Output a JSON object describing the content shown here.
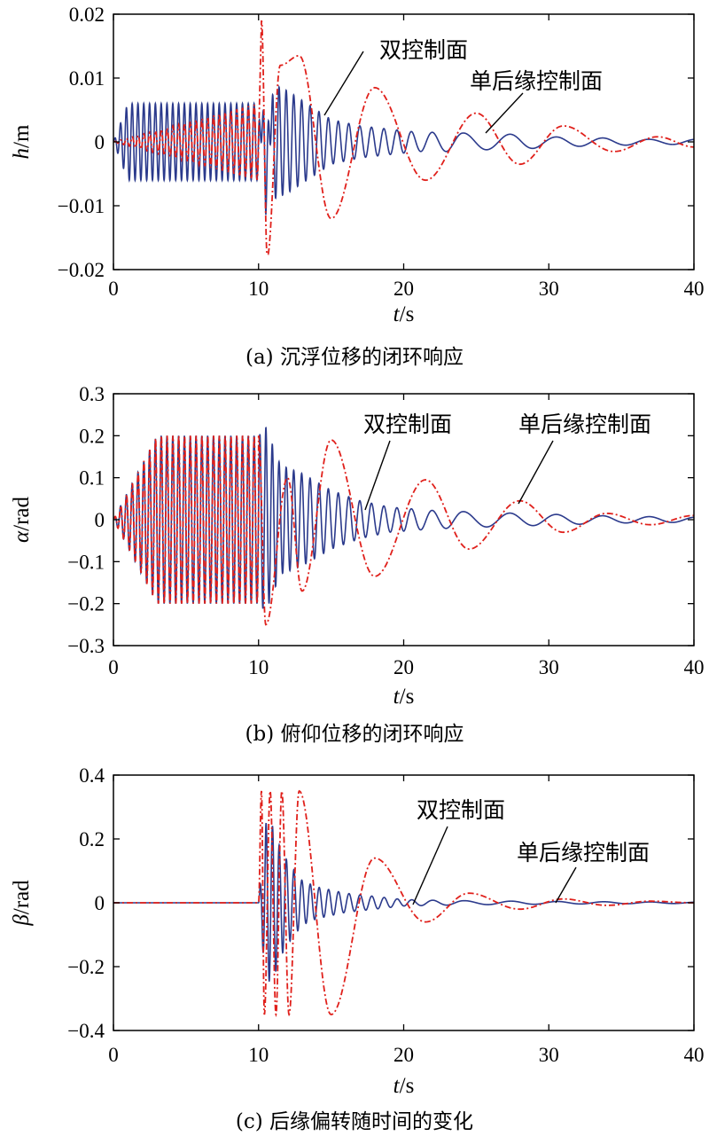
{
  "colors": {
    "dual": "#2b3a8c",
    "single": "#e0201b",
    "axis": "#000000"
  },
  "chart_data": [
    {
      "type": "line",
      "caption": "(a) 沉浮位移的闭环响应",
      "ylabel_var": "h",
      "ylabel_unit": "/m",
      "xlabel_var": "t",
      "xlabel_unit": "/s",
      "xlim": [
        0,
        40
      ],
      "ylim": [
        -0.02,
        0.02
      ],
      "xticks": [
        0,
        10,
        20,
        30,
        40
      ],
      "yticks": [
        -0.02,
        -0.01,
        0,
        0.01,
        0.02
      ],
      "ytick_labels": [
        "−0.02",
        "−0.01",
        "0",
        "0.01",
        "0.02"
      ],
      "grid": false,
      "series": [
        {
          "name": "双控制面",
          "style": "solid",
          "points": [
            [
              0,
              0
            ],
            [
              1,
              0.006
            ],
            [
              5,
              0.006
            ],
            [
              10,
              0.006
            ],
            [
              10.5,
              -0.0115
            ],
            [
              11,
              0.009
            ],
            [
              12,
              0.008
            ],
            [
              13,
              0.0065
            ],
            [
              14,
              0.005
            ],
            [
              15,
              0.0035
            ],
            [
              17,
              0.0025
            ],
            [
              19,
              0.002
            ],
            [
              21,
              0.0015
            ],
            [
              23,
              0.0015
            ],
            [
              26,
              0.0012
            ],
            [
              28,
              0.0012
            ],
            [
              30,
              0.0008
            ],
            [
              34,
              0.0006
            ],
            [
              37,
              0.0004
            ],
            [
              40,
              0.0004
            ]
          ],
          "period_before": 0.4,
          "period_after": 0.95,
          "late_period": 3.6
        },
        {
          "name": "单后缘控制面",
          "style": "dashdot",
          "points": [
            [
              0,
              0
            ],
            [
              10,
              0.006
            ],
            [
              10.2,
              0.019
            ],
            [
              10.6,
              -0.018
            ],
            [
              11.5,
              0.012
            ],
            [
              12.8,
              0.0135
            ],
            [
              15,
              -0.012
            ],
            [
              18,
              0.0085
            ],
            [
              21.5,
              -0.006
            ],
            [
              25,
              0.0045
            ],
            [
              28,
              -0.0035
            ],
            [
              31,
              0.0025
            ],
            [
              34.5,
              -0.0015
            ],
            [
              37.5,
              0.0008
            ],
            [
              40,
              -0.0008
            ]
          ],
          "period_before": 0.4
        }
      ],
      "annotations": [
        {
          "text": "双控制面",
          "series": "双控制面"
        },
        {
          "text": "单后缘控制面",
          "series": "单后缘控制面"
        }
      ]
    },
    {
      "type": "line",
      "caption": "(b) 俯仰位移的闭环响应",
      "ylabel_var": "α",
      "ylabel_unit": "/rad",
      "xlabel_var": "t",
      "xlabel_unit": "/s",
      "xlim": [
        0,
        40
      ],
      "ylim": [
        -0.3,
        0.3
      ],
      "xticks": [
        0,
        10,
        20,
        30,
        40
      ],
      "yticks": [
        -0.3,
        -0.2,
        -0.1,
        0,
        0.1,
        0.2,
        0.3
      ],
      "ytick_labels": [
        "−0.3",
        "−0.2",
        "−0.1",
        "0",
        "0.1",
        "0.2",
        "0.3"
      ],
      "grid": false,
      "series": [
        {
          "name": "双控制面",
          "style": "solid",
          "points": [
            [
              0,
              0
            ],
            [
              3,
              0.2
            ],
            [
              10,
              0.2
            ],
            [
              10.5,
              0.22
            ],
            [
              11.5,
              0.13
            ],
            [
              13,
              0.11
            ],
            [
              15,
              0.07
            ],
            [
              17,
              0.045
            ],
            [
              19,
              0.03
            ],
            [
              22,
              0.022
            ],
            [
              25,
              0.018
            ],
            [
              28,
              0.015
            ],
            [
              31,
              0.012
            ],
            [
              35,
              0.008
            ],
            [
              40,
              0.006
            ]
          ]
        },
        {
          "name": "单后缘控制面",
          "style": "dashdot",
          "points": [
            [
              0,
              0
            ],
            [
              3,
              0.2
            ],
            [
              10,
              0.2
            ],
            [
              10.5,
              -0.25
            ],
            [
              12,
              0.1
            ],
            [
              13,
              -0.17
            ],
            [
              15,
              0.19
            ],
            [
              18,
              -0.135
            ],
            [
              21.5,
              0.095
            ],
            [
              24.5,
              -0.07
            ],
            [
              28,
              0.045
            ],
            [
              31,
              -0.03
            ],
            [
              34,
              0.015
            ],
            [
              37,
              -0.012
            ],
            [
              40,
              0.01
            ]
          ]
        }
      ],
      "annotations": [
        {
          "text": "双控制面",
          "series": "双控制面"
        },
        {
          "text": "单后缘控制面",
          "series": "单后缘控制面"
        }
      ]
    },
    {
      "type": "line",
      "caption": "(c) 后缘偏转随时间的变化",
      "ylabel_var": "β",
      "ylabel_unit": "/rad",
      "xlabel_var": "t",
      "xlabel_unit": "/s",
      "xlim": [
        0,
        40
      ],
      "ylim": [
        -0.4,
        0.4
      ],
      "xticks": [
        0,
        10,
        20,
        30,
        40
      ],
      "yticks": [
        -0.4,
        -0.2,
        0,
        0.2,
        0.4
      ],
      "ytick_labels": [
        "−0.4",
        "−0.2",
        "0",
        "0.2",
        "0.4"
      ],
      "grid": false,
      "series": [
        {
          "name": "双控制面",
          "style": "solid",
          "points": [
            [
              0,
              0
            ],
            [
              10,
              0
            ],
            [
              10.5,
              0.25
            ],
            [
              11,
              0.24
            ],
            [
              11.5,
              0.17
            ],
            [
              12,
              0.13
            ],
            [
              13,
              0.07
            ],
            [
              14,
              0.05
            ],
            [
              16,
              0.03
            ],
            [
              18,
              0.02
            ],
            [
              20,
              0.01
            ],
            [
              22,
              0.008
            ],
            [
              25,
              0.006
            ],
            [
              28,
              0.005
            ],
            [
              31,
              0.004
            ],
            [
              35,
              0.003
            ],
            [
              40,
              0.002
            ]
          ]
        },
        {
          "name": "单后缘控制面",
          "style": "dashdot",
          "points": [
            [
              0,
              0
            ],
            [
              10,
              0
            ],
            [
              10.2,
              0.35
            ],
            [
              10.4,
              -0.35
            ],
            [
              10.8,
              0.35
            ],
            [
              11.2,
              -0.35
            ],
            [
              11.6,
              0.35
            ],
            [
              12.1,
              -0.35
            ],
            [
              12.8,
              0.35
            ],
            [
              15,
              -0.35
            ],
            [
              18,
              0.14
            ],
            [
              21.5,
              -0.06
            ],
            [
              24.5,
              0.03
            ],
            [
              28,
              -0.02
            ],
            [
              31,
              0.012
            ],
            [
              34,
              -0.008
            ],
            [
              37,
              0.005
            ],
            [
              40,
              0
            ]
          ]
        }
      ],
      "annotations": [
        {
          "text": "双控制面",
          "series": "双控制面"
        },
        {
          "text": "单后缘控制面",
          "series": "单后缘控制面"
        }
      ]
    }
  ]
}
